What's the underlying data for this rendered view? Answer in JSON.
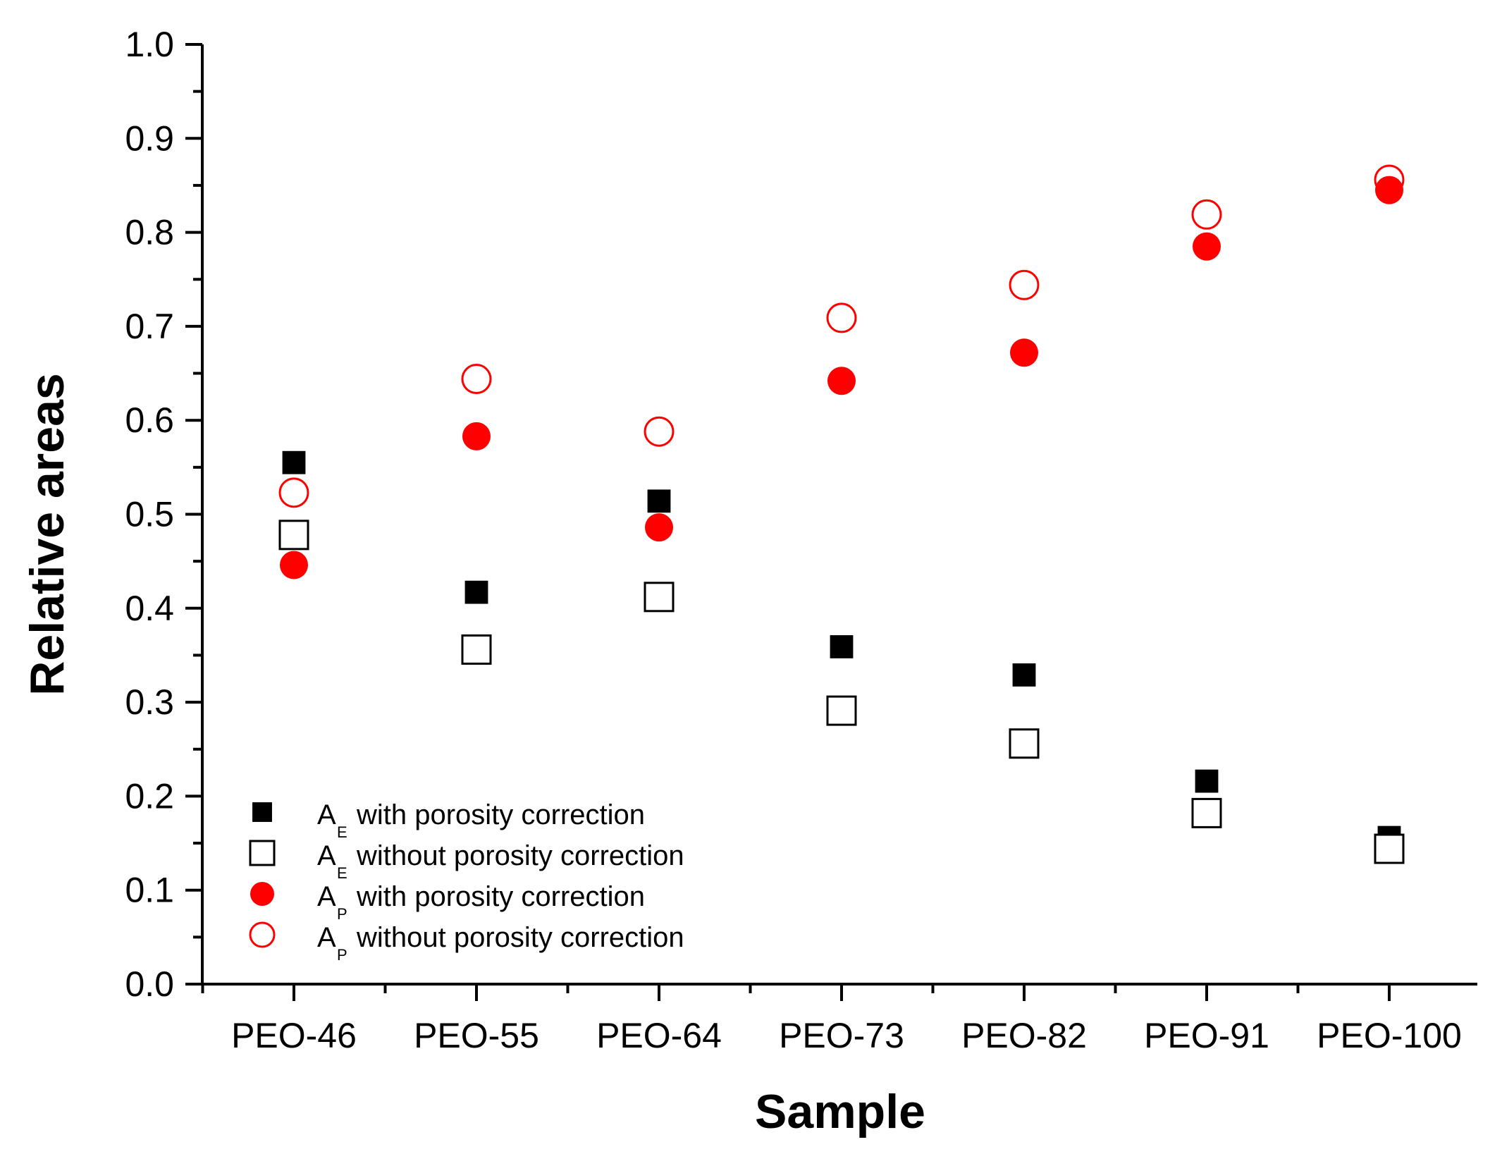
{
  "chart_data": {
    "type": "scatter",
    "title": "",
    "xlabel": "Sample",
    "ylabel": "Relative areas",
    "categories": [
      "PEO-46",
      "PEO-55",
      "PEO-64",
      "PEO-73",
      "PEO-82",
      "PEO-91",
      "PEO-100"
    ],
    "ylim": [
      0.0,
      1.0
    ],
    "yticks": [
      "0.0",
      "0.1",
      "0.2",
      "0.3",
      "0.4",
      "0.5",
      "0.6",
      "0.7",
      "0.8",
      "0.9",
      "1.0"
    ],
    "grid": false,
    "legend_position": "bottom-left",
    "series": [
      {
        "name": "A_E with porosity correction",
        "legend_main": "A",
        "legend_sub": "E",
        "legend_rest": "with porosity correction",
        "marker": "square-filled",
        "color": "#000000",
        "values": [
          0.555,
          0.417,
          0.514,
          0.359,
          0.329,
          0.216,
          0.156
        ]
      },
      {
        "name": "A_E without porosity correction",
        "legend_main": "A",
        "legend_sub": "E",
        "legend_rest": "without porosity correction",
        "marker": "square-open",
        "color": "#000000",
        "values": [
          0.478,
          0.356,
          0.412,
          0.291,
          0.256,
          0.182,
          0.144
        ]
      },
      {
        "name": "A_P with porosity correction",
        "legend_main": "A",
        "legend_sub": "P",
        "legend_rest": "with porosity correction",
        "marker": "circle-filled",
        "color": "#ff0000",
        "values": [
          0.446,
          0.583,
          0.486,
          0.642,
          0.672,
          0.785,
          0.845
        ]
      },
      {
        "name": "A_P without porosity correction",
        "legend_main": "A",
        "legend_sub": "P",
        "legend_rest": "without porosity correction",
        "marker": "circle-open",
        "color": "#ff0000",
        "values": [
          0.523,
          0.644,
          0.588,
          0.709,
          0.744,
          0.819,
          0.856
        ]
      }
    ]
  }
}
